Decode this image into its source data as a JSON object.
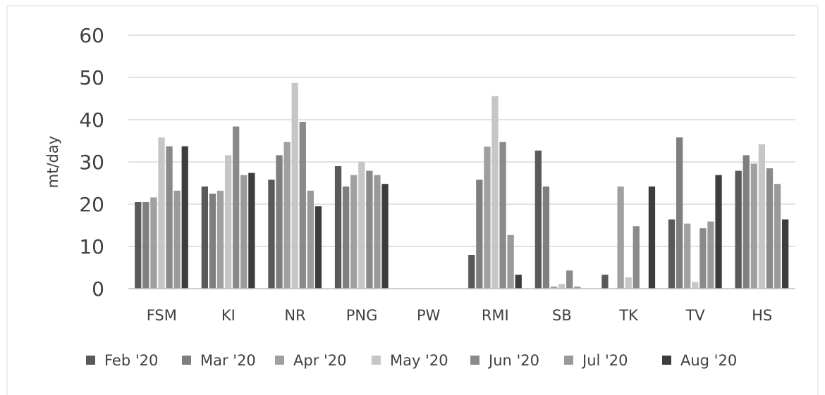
{
  "chart_data": {
    "type": "bar",
    "title": "",
    "xlabel": "",
    "ylabel": "mt/day",
    "ylim": [
      0,
      60
    ],
    "yticks": [
      0,
      10,
      20,
      30,
      40,
      50,
      60
    ],
    "grid": true,
    "legend_position": "bottom",
    "categories": [
      "FSM",
      "KI",
      "NR",
      "PNG",
      "PW",
      "RMI",
      "SB",
      "TK",
      "TV",
      "HS"
    ],
    "series": [
      {
        "name": "Feb '20",
        "color": "#595959",
        "values": [
          20.5,
          24.2,
          25.8,
          29.0,
          0,
          8.0,
          32.7,
          3.3,
          16.4,
          27.9
        ]
      },
      {
        "name": "Mar '20",
        "color": "#7f7f7f",
        "values": [
          20.5,
          22.5,
          31.6,
          24.2,
          0,
          25.8,
          24.2,
          0,
          35.8,
          31.6
        ]
      },
      {
        "name": "Apr '20",
        "color": "#a0a0a0",
        "values": [
          21.6,
          23.2,
          34.7,
          26.9,
          0,
          33.6,
          0.5,
          24.2,
          15.4,
          29.6
        ]
      },
      {
        "name": "May '20",
        "color": "#c6c6c6",
        "values": [
          35.8,
          31.6,
          48.7,
          30.0,
          0,
          45.6,
          1.1,
          2.7,
          1.6,
          34.2
        ]
      },
      {
        "name": "Jun '20",
        "color": "#8a8a8a",
        "values": [
          33.7,
          38.4,
          39.5,
          27.9,
          0,
          34.7,
          4.3,
          14.8,
          14.3,
          28.5
        ]
      },
      {
        "name": "Jul '20",
        "color": "#9a9a9a",
        "values": [
          23.2,
          26.9,
          23.2,
          26.9,
          0,
          12.7,
          0.5,
          0,
          15.9,
          24.8
        ]
      },
      {
        "name": "Aug '20",
        "color": "#3d3d3d",
        "values": [
          33.7,
          27.4,
          19.5,
          24.8,
          0,
          3.3,
          0,
          24.2,
          26.9,
          16.4
        ]
      }
    ]
  }
}
